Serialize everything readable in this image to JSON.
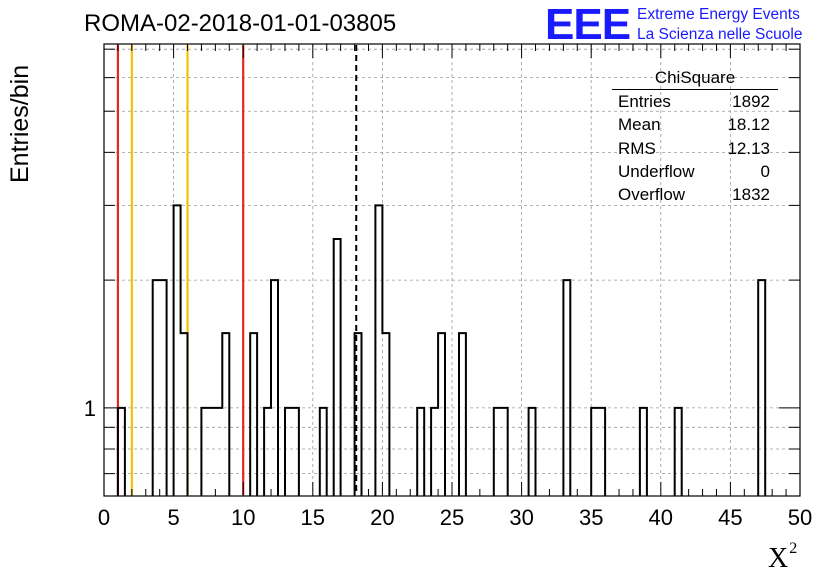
{
  "chart_data": {
    "type": "bar",
    "title": "ROMA-02-2018-01-01-03805",
    "xlabel": "X",
    "xlabel_sup": "2",
    "ylabel": "Entries/bin",
    "xlim": [
      0,
      50
    ],
    "ylog": true,
    "ylim": [
      0.62,
      7.2
    ],
    "grid": true,
    "bin_width": 0.5,
    "bins": [
      [
        1,
        1
      ],
      [
        3.5,
        2
      ],
      [
        4,
        2
      ],
      [
        5,
        3
      ],
      [
        5.5,
        1.5
      ],
      [
        7,
        1
      ],
      [
        7.5,
        1
      ],
      [
        8,
        1
      ],
      [
        8.5,
        1.5
      ],
      [
        10.5,
        1.5
      ],
      [
        11.5,
        1
      ],
      [
        12,
        2
      ],
      [
        13,
        1
      ],
      [
        13.5,
        1
      ],
      [
        15.5,
        1
      ],
      [
        16.5,
        2.5
      ],
      [
        18,
        1.5
      ],
      [
        19.5,
        3
      ],
      [
        20,
        1.5
      ],
      [
        22.5,
        1
      ],
      [
        23.5,
        1
      ],
      [
        24,
        1.5
      ],
      [
        25.5,
        1.5
      ],
      [
        28,
        1
      ],
      [
        28.5,
        1
      ],
      [
        30.5,
        1
      ],
      [
        33,
        2
      ],
      [
        35,
        1
      ],
      [
        35.5,
        1
      ],
      [
        38.5,
        1
      ],
      [
        41,
        1
      ],
      [
        47,
        2
      ]
    ],
    "x_ticks": [
      "0",
      "5",
      "10",
      "15",
      "20",
      "25",
      "30",
      "35",
      "40",
      "45",
      "50"
    ],
    "x_tick_values": [
      0,
      5,
      10,
      15,
      20,
      25,
      30,
      35,
      40,
      45,
      50
    ],
    "y_tick_labels": [
      {
        "value": 1,
        "label": "1"
      }
    ],
    "vertical_lines": [
      {
        "x": 1,
        "color": "#e8261e",
        "style": "solid"
      },
      {
        "x": 2,
        "color": "#f2c200",
        "style": "solid"
      },
      {
        "x": 6,
        "color": "#f2c200",
        "style": "solid"
      },
      {
        "x": 10,
        "color": "#e8261e",
        "style": "solid"
      },
      {
        "x": 18.12,
        "color": "#000000",
        "style": "dashed"
      }
    ]
  },
  "stats_box": {
    "title": "ChiSquare",
    "rows": [
      {
        "label": "Entries",
        "value": "1892"
      },
      {
        "label": "Mean",
        "value": "18.12"
      },
      {
        "label": "RMS",
        "value": "12.13"
      },
      {
        "label": "Underflow",
        "value": "0"
      },
      {
        "label": "Overflow",
        "value": "1832"
      }
    ]
  },
  "logo": {
    "mark": "EEE",
    "line1": "Extreme Energy Events",
    "line2": "La Scienza nelle Scuole"
  }
}
